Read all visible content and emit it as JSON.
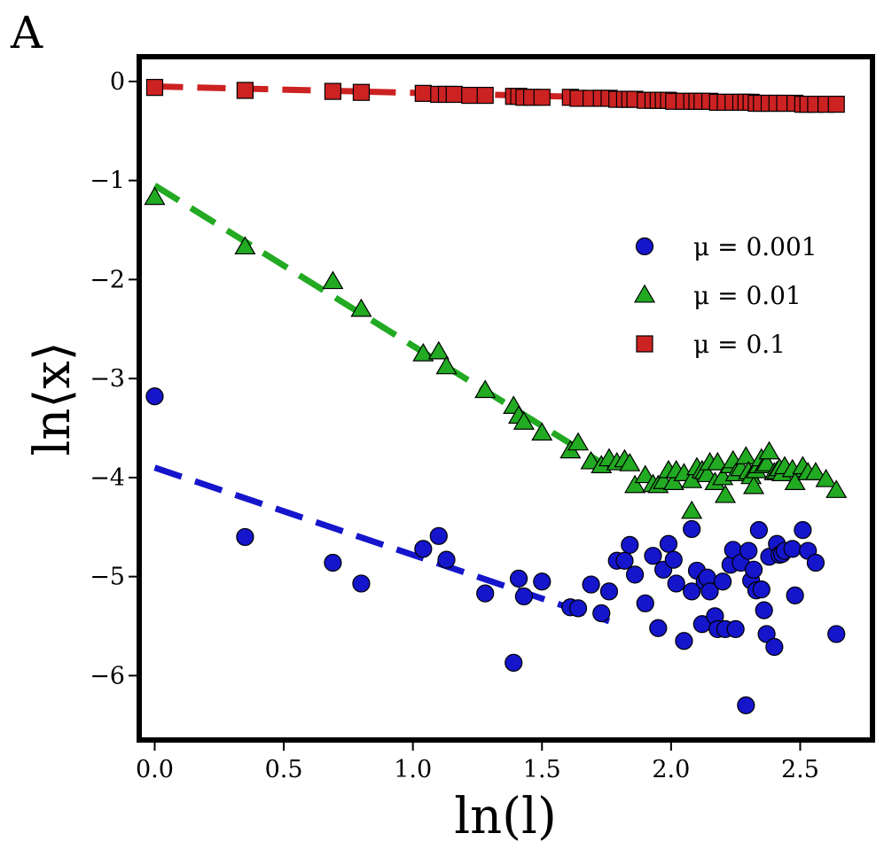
{
  "panel_label": "A",
  "chart_data": {
    "type": "scatter",
    "title": "",
    "xlabel": "ln(l)",
    "ylabel": "ln⟨x⟩",
    "xlim": [
      -0.06,
      2.78
    ],
    "ylim": [
      -6.65,
      0.25
    ],
    "xticks": [
      0.0,
      0.5,
      1.0,
      1.5,
      2.0,
      2.5
    ],
    "xtick_labels": [
      "0.0",
      "0.5",
      "1.0",
      "1.5",
      "2.0",
      "2.5"
    ],
    "yticks": [
      0,
      -1,
      -2,
      -3,
      -4,
      -5,
      -6
    ],
    "ytick_labels": [
      "0",
      "−1",
      "−2",
      "−3",
      "−4",
      "−5",
      "−6"
    ],
    "grid": false,
    "legend_position": "center-right",
    "series": [
      {
        "name": "μ = 0.001",
        "legend_label": "μ = 0.001",
        "marker": "circle",
        "color": "#1515cc",
        "points": [
          [
            0.0,
            -3.18
          ],
          [
            0.35,
            -4.6
          ],
          [
            0.69,
            -4.86
          ],
          [
            0.8,
            -5.07
          ],
          [
            1.04,
            -4.72
          ],
          [
            1.1,
            -4.59
          ],
          [
            1.13,
            -4.83
          ],
          [
            1.28,
            -5.17
          ],
          [
            1.39,
            -5.87
          ],
          [
            1.41,
            -5.02
          ],
          [
            1.43,
            -5.2
          ],
          [
            1.5,
            -5.05
          ],
          [
            1.61,
            -5.31
          ],
          [
            1.64,
            -5.32
          ],
          [
            1.69,
            -5.08
          ],
          [
            1.73,
            -5.37
          ],
          [
            1.76,
            -5.15
          ],
          [
            1.79,
            -4.84
          ],
          [
            1.82,
            -4.84
          ],
          [
            1.84,
            -4.68
          ],
          [
            1.86,
            -4.98
          ],
          [
            1.9,
            -5.27
          ],
          [
            1.93,
            -4.79
          ],
          [
            1.95,
            -5.52
          ],
          [
            1.97,
            -4.93
          ],
          [
            1.99,
            -4.67
          ],
          [
            2.01,
            -4.83
          ],
          [
            2.02,
            -5.07
          ],
          [
            2.05,
            -5.65
          ],
          [
            2.08,
            -4.52
          ],
          [
            2.08,
            -5.15
          ],
          [
            2.1,
            -4.94
          ],
          [
            2.12,
            -5.48
          ],
          [
            2.13,
            -5.05
          ],
          [
            2.14,
            -5.01
          ],
          [
            2.15,
            -5.15
          ],
          [
            2.17,
            -5.4
          ],
          [
            2.18,
            -5.53
          ],
          [
            2.2,
            -5.05
          ],
          [
            2.21,
            -5.53
          ],
          [
            2.23,
            -4.88
          ],
          [
            2.24,
            -4.73
          ],
          [
            2.25,
            -5.53
          ],
          [
            2.27,
            -4.86
          ],
          [
            2.29,
            -6.3
          ],
          [
            2.3,
            -4.74
          ],
          [
            2.31,
            -5.04
          ],
          [
            2.32,
            -4.93
          ],
          [
            2.33,
            -5.14
          ],
          [
            2.34,
            -4.53
          ],
          [
            2.35,
            -5.13
          ],
          [
            2.36,
            -5.34
          ],
          [
            2.37,
            -5.58
          ],
          [
            2.38,
            -4.8
          ],
          [
            2.4,
            -5.71
          ],
          [
            2.41,
            -4.67
          ],
          [
            2.42,
            -4.78
          ],
          [
            2.43,
            -4.77
          ],
          [
            2.44,
            -4.74
          ],
          [
            2.47,
            -4.72
          ],
          [
            2.48,
            -5.19
          ],
          [
            2.51,
            -4.53
          ],
          [
            2.53,
            -4.74
          ],
          [
            2.56,
            -4.86
          ],
          [
            2.64,
            -5.58
          ]
        ]
      },
      {
        "name": "μ = 0.01",
        "legend_label": "μ = 0.01",
        "marker": "triangle",
        "color": "#22aa22",
        "points": [
          [
            0.0,
            -1.17
          ],
          [
            0.35,
            -1.67
          ],
          [
            0.69,
            -2.02
          ],
          [
            0.8,
            -2.3
          ],
          [
            1.04,
            -2.75
          ],
          [
            1.1,
            -2.73
          ],
          [
            1.13,
            -2.88
          ],
          [
            1.28,
            -3.12
          ],
          [
            1.39,
            -3.28
          ],
          [
            1.41,
            -3.38
          ],
          [
            1.43,
            -3.44
          ],
          [
            1.5,
            -3.55
          ],
          [
            1.61,
            -3.73
          ],
          [
            1.64,
            -3.65
          ],
          [
            1.69,
            -3.84
          ],
          [
            1.73,
            -3.88
          ],
          [
            1.76,
            -3.81
          ],
          [
            1.79,
            -3.85
          ],
          [
            1.82,
            -3.82
          ],
          [
            1.84,
            -3.86
          ],
          [
            1.86,
            -4.08
          ],
          [
            1.9,
            -3.98
          ],
          [
            1.93,
            -4.07
          ],
          [
            1.95,
            -4.08
          ],
          [
            1.97,
            -4.04
          ],
          [
            1.99,
            -3.93
          ],
          [
            2.01,
            -4.05
          ],
          [
            2.02,
            -3.93
          ],
          [
            2.05,
            -3.96
          ],
          [
            2.08,
            -4.34
          ],
          [
            2.08,
            -4.03
          ],
          [
            2.1,
            -3.9
          ],
          [
            2.12,
            -3.93
          ],
          [
            2.13,
            -3.94
          ],
          [
            2.14,
            -3.97
          ],
          [
            2.15,
            -3.85
          ],
          [
            2.17,
            -4.05
          ],
          [
            2.18,
            -3.85
          ],
          [
            2.2,
            -4.0
          ],
          [
            2.21,
            -4.18
          ],
          [
            2.23,
            -3.88
          ],
          [
            2.24,
            -3.83
          ],
          [
            2.25,
            -3.96
          ],
          [
            2.27,
            -3.91
          ],
          [
            2.29,
            -3.79
          ],
          [
            2.3,
            -3.94
          ],
          [
            2.31,
            -3.99
          ],
          [
            2.32,
            -4.09
          ],
          [
            2.33,
            -3.93
          ],
          [
            2.34,
            -3.88
          ],
          [
            2.35,
            -3.81
          ],
          [
            2.36,
            -3.88
          ],
          [
            2.37,
            -3.86
          ],
          [
            2.38,
            -3.74
          ],
          [
            2.4,
            -3.95
          ],
          [
            2.41,
            -3.94
          ],
          [
            2.42,
            -3.91
          ],
          [
            2.43,
            -3.96
          ],
          [
            2.44,
            -3.89
          ],
          [
            2.47,
            -3.92
          ],
          [
            2.48,
            -4.05
          ],
          [
            2.51,
            -3.89
          ],
          [
            2.53,
            -3.95
          ],
          [
            2.56,
            -3.95
          ],
          [
            2.6,
            -4.02
          ],
          [
            2.64,
            -4.13
          ]
        ]
      },
      {
        "name": "μ = 0.1",
        "legend_label": "μ = 0.1",
        "marker": "square",
        "color": "#cc2222",
        "points": [
          [
            0.0,
            -0.06
          ],
          [
            0.35,
            -0.09
          ],
          [
            0.69,
            -0.1
          ],
          [
            0.8,
            -0.11
          ],
          [
            1.04,
            -0.12
          ],
          [
            1.1,
            -0.13
          ],
          [
            1.13,
            -0.13
          ],
          [
            1.16,
            -0.13
          ],
          [
            1.22,
            -0.14
          ],
          [
            1.28,
            -0.14
          ],
          [
            1.39,
            -0.15
          ],
          [
            1.41,
            -0.15
          ],
          [
            1.43,
            -0.16
          ],
          [
            1.46,
            -0.16
          ],
          [
            1.5,
            -0.16
          ],
          [
            1.61,
            -0.16
          ],
          [
            1.64,
            -0.17
          ],
          [
            1.69,
            -0.17
          ],
          [
            1.73,
            -0.17
          ],
          [
            1.76,
            -0.17
          ],
          [
            1.79,
            -0.18
          ],
          [
            1.82,
            -0.18
          ],
          [
            1.84,
            -0.18
          ],
          [
            1.86,
            -0.18
          ],
          [
            1.9,
            -0.19
          ],
          [
            1.93,
            -0.19
          ],
          [
            1.95,
            -0.19
          ],
          [
            1.97,
            -0.19
          ],
          [
            1.99,
            -0.19
          ],
          [
            2.01,
            -0.2
          ],
          [
            2.05,
            -0.2
          ],
          [
            2.08,
            -0.2
          ],
          [
            2.1,
            -0.2
          ],
          [
            2.12,
            -0.2
          ],
          [
            2.15,
            -0.2
          ],
          [
            2.18,
            -0.21
          ],
          [
            2.21,
            -0.21
          ],
          [
            2.24,
            -0.21
          ],
          [
            2.27,
            -0.21
          ],
          [
            2.29,
            -0.21
          ],
          [
            2.31,
            -0.21
          ],
          [
            2.33,
            -0.22
          ],
          [
            2.35,
            -0.22
          ],
          [
            2.38,
            -0.22
          ],
          [
            2.41,
            -0.22
          ],
          [
            2.44,
            -0.22
          ],
          [
            2.48,
            -0.22
          ],
          [
            2.51,
            -0.23
          ],
          [
            2.53,
            -0.23
          ],
          [
            2.56,
            -0.23
          ],
          [
            2.6,
            -0.23
          ],
          [
            2.64,
            -0.23
          ]
        ]
      }
    ],
    "fit_lines": [
      {
        "name": "fit-mu-0.001",
        "color": "#1515cc",
        "points": [
          [
            0.0,
            -3.9
          ],
          [
            1.76,
            -5.45
          ]
        ]
      },
      {
        "name": "fit-mu-0.01",
        "color": "#22aa22",
        "points": [
          [
            0.0,
            -1.05
          ],
          [
            1.76,
            -3.9
          ]
        ]
      },
      {
        "name": "fit-mu-0.1",
        "color": "#cc2222",
        "points": [
          [
            0.0,
            -0.05
          ],
          [
            2.64,
            -0.22
          ]
        ]
      }
    ]
  }
}
